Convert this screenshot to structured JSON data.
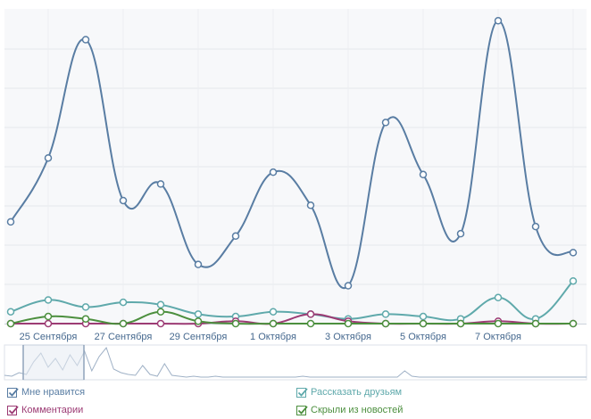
{
  "chart_data": {
    "type": "line",
    "tick_labels": [
      "25 Сентября",
      "27 Сентября",
      "29 Сентября",
      "1 Октября",
      "3 Октября",
      "5 Октября",
      "7 Октября"
    ],
    "x_index_range": [
      0,
      15
    ],
    "grid": true,
    "series": [
      {
        "name": "Мне нравится",
        "color": "#597da3",
        "values": [
          43,
          70,
          120,
          52,
          59,
          25,
          37,
          64,
          50,
          16,
          85,
          63,
          38,
          128,
          41,
          30
        ]
      },
      {
        "name": "Рассказать друзьям",
        "color": "#5fa9ab",
        "values": [
          5,
          10,
          7,
          9,
          8,
          4,
          3,
          5,
          4,
          2,
          4,
          3,
          2,
          11,
          2,
          18
        ]
      },
      {
        "name": "Комментарии",
        "color": "#9c3b74",
        "values": [
          0,
          0,
          0,
          0,
          0,
          0,
          1,
          0,
          4,
          1,
          0,
          0,
          0,
          1,
          0,
          0
        ]
      },
      {
        "name": "Скрыли из новостей",
        "color": "#4c8f3e",
        "values": [
          0,
          3,
          2,
          0,
          5,
          1,
          0,
          0,
          0,
          0,
          0,
          0,
          0,
          0,
          0,
          0
        ]
      }
    ],
    "y_range": [
      0,
      133
    ]
  },
  "legend": [
    {
      "label": "Мне нравится",
      "color": "#597da3",
      "checked": true
    },
    {
      "label": "Комментарии",
      "color": "#9c3b74",
      "checked": true
    },
    {
      "label": "Рассказать друзьям",
      "color": "#5fa9ab",
      "checked": true
    },
    {
      "label": "Скрыли из новостей",
      "color": "#4c8f3e",
      "checked": true
    }
  ]
}
